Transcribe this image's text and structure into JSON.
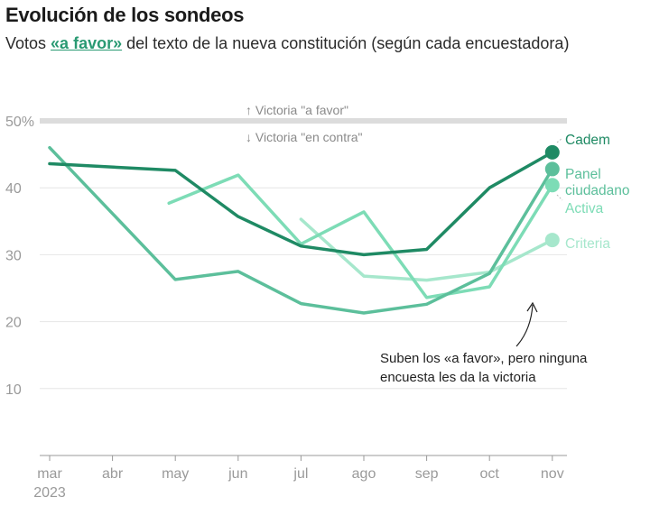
{
  "header": {
    "title": "Evolución de los sondeos",
    "subtitle_pre": "Votos ",
    "subtitle_highlight": "«a favor»",
    "subtitle_post": " del texto de la nueva constitución (según cada encuestadora)"
  },
  "chart_data": {
    "type": "line",
    "title": "Evolución de los sondeos",
    "subtitle": "Votos «a favor» del texto de la nueva constitución (según cada encuestadora)",
    "categories": [
      "mar",
      "abr",
      "may",
      "jun",
      "jul",
      "ago",
      "sep",
      "oct",
      "nov"
    ],
    "year_label": "2023",
    "ylim": [
      0,
      50
    ],
    "yticks": [
      10,
      20,
      30,
      40,
      50
    ],
    "ytick_labels": [
      "10",
      "20",
      "30",
      "40",
      "50%"
    ],
    "threshold": 50,
    "threshold_notes": [
      "↑ Victoria \"a favor\"",
      "↓ Victoria \"en contra\""
    ],
    "series": [
      {
        "name": "Cadem",
        "color": "#1f8a64",
        "points": [
          [
            0,
            43.6
          ],
          [
            2,
            42.6
          ],
          [
            3,
            35.7
          ],
          [
            4,
            31.3
          ],
          [
            5,
            30.0
          ],
          [
            6,
            30.8
          ],
          [
            7,
            40.0
          ],
          [
            8,
            45.3
          ]
        ]
      },
      {
        "name": "Panel ciudadano",
        "color": "#5cbf9b",
        "points": [
          [
            0,
            46.0
          ],
          [
            2,
            26.3
          ],
          [
            3,
            27.5
          ],
          [
            4,
            22.7
          ],
          [
            5,
            21.3
          ],
          [
            6,
            22.6
          ],
          [
            7,
            27.2
          ],
          [
            8,
            42.8
          ]
        ]
      },
      {
        "name": "Activa",
        "color": "#7ddcb6",
        "points": [
          [
            1.9,
            37.7
          ],
          [
            3,
            41.9
          ],
          [
            4,
            31.6
          ],
          [
            5,
            36.4
          ],
          [
            6,
            23.6
          ],
          [
            7,
            25.2
          ],
          [
            8,
            40.4
          ]
        ]
      },
      {
        "name": "Criteria",
        "color": "#a6e7cc",
        "points": [
          [
            4,
            35.3
          ],
          [
            5,
            26.8
          ],
          [
            6,
            26.2
          ],
          [
            7,
            27.4
          ],
          [
            8,
            32.2
          ]
        ]
      }
    ],
    "labels": [
      {
        "series": "Cadem",
        "lines": [
          "Cadem"
        ]
      },
      {
        "series": "Panel ciudadano",
        "lines": [
          "Panel",
          "ciudadano"
        ]
      },
      {
        "series": "Activa",
        "lines": [
          "Activa"
        ]
      },
      {
        "series": "Criteria",
        "lines": [
          "Criteria"
        ]
      }
    ],
    "annotation": [
      "Suben los «a favor», pero ninguna",
      "encuesta les da la victoria"
    ]
  }
}
